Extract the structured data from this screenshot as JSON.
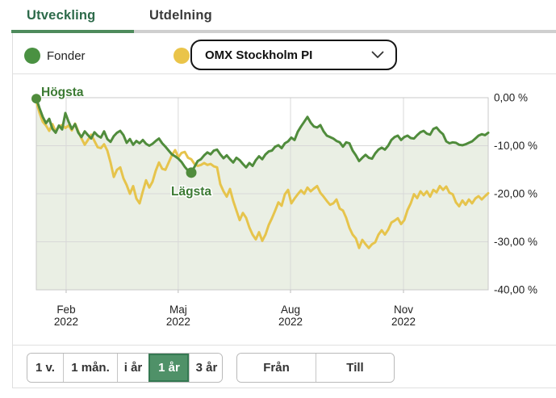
{
  "header": {
    "tabs": [
      {
        "label": "Utveckling",
        "active": true
      },
      {
        "label": "Utdelning",
        "active": false
      }
    ]
  },
  "legend": {
    "fund_label": "Fonder",
    "index_dropdown_value": "OMX Stockholm PI"
  },
  "chart_data": {
    "type": "line",
    "y_axis": {
      "unit": "%",
      "min": -40,
      "max": 0,
      "ticks": [
        {
          "label": "0,00 %",
          "value": 0
        },
        {
          "label": "-10,00 %",
          "value": -10
        },
        {
          "label": "-20,00 %",
          "value": -20
        },
        {
          "label": "-30,00 %",
          "value": -30
        },
        {
          "label": "-40,00 %",
          "value": -40
        }
      ]
    },
    "x_axis": {
      "ticks": [
        {
          "month": "Feb",
          "year": "2022",
          "t": 0.066
        },
        {
          "month": "Maj",
          "year": "2022",
          "t": 0.314
        },
        {
          "month": "Aug",
          "year": "2022",
          "t": 0.5625
        },
        {
          "month": "Nov",
          "year": "2022",
          "t": 0.8125
        }
      ]
    },
    "grid": true,
    "annotations": {
      "high": {
        "label": "Högsta",
        "series": "Fonder",
        "t": 0.0,
        "value": -0.2
      },
      "low": {
        "label": "Lägsta",
        "series": "Fonder",
        "t": 0.3429,
        "value": -15.6
      }
    },
    "series": [
      {
        "name": "Fonder",
        "color": "#508c3c",
        "area_fill": "#eaefe4",
        "values": [
          -0.2,
          -2.2,
          -4,
          -5.3,
          -4.4,
          -6.5,
          -7.3,
          -5.8,
          -6.6,
          -3.2,
          -5,
          -6.5,
          -5.5,
          -7.3,
          -8.2,
          -7,
          -7.8,
          -8.5,
          -7.2,
          -7.9,
          -8.3,
          -7,
          -8.6,
          -9.2,
          -8,
          -7.3,
          -6.9,
          -7.8,
          -9.4,
          -8.6,
          -9.8,
          -9,
          -9.5,
          -8.8,
          -9.6,
          -10,
          -9.6,
          -9,
          -8.5,
          -9.5,
          -10.2,
          -11,
          -11.8,
          -12.2,
          -12.7,
          -13.4,
          -14.4,
          -15.2,
          -15.6,
          -14.4,
          -13.2,
          -12.8,
          -12,
          -11.4,
          -11.8,
          -11,
          -10.8,
          -11.8,
          -12.6,
          -12,
          -12.8,
          -13.5,
          -12.5,
          -13,
          -13.8,
          -14.5,
          -13.6,
          -14.2,
          -13,
          -12.2,
          -12.8,
          -11.8,
          -11.2,
          -11,
          -10.2,
          -9.9,
          -10.5,
          -9.5,
          -9.1,
          -8.3,
          -8.8,
          -7.1,
          -6,
          -5,
          -4,
          -5.2,
          -6,
          -6.2,
          -5.7,
          -7,
          -7.9,
          -8.2,
          -8.5,
          -9,
          -9.3,
          -10.2,
          -9.3,
          -9.5,
          -11,
          -12,
          -13.2,
          -12.5,
          -11.9,
          -12.5,
          -12.7,
          -11.6,
          -10.8,
          -10.4,
          -10.8,
          -10,
          -8.8,
          -8.2,
          -7.9,
          -8.8,
          -8.2,
          -7.9,
          -8.4,
          -8.5,
          -7.8,
          -7.2,
          -6.9,
          -7.5,
          -7.7,
          -6.5,
          -6.2,
          -7,
          -7.6,
          -9.1,
          -9.5,
          -9.3,
          -9.4,
          -9.8,
          -9.9,
          -9.7,
          -9.4,
          -9.1,
          -8.5,
          -7.9,
          -7.6,
          -7.8,
          -7.3
        ]
      },
      {
        "name": "OMX Stockholm PI",
        "color": "#e6c44c",
        "values": [
          -0.8,
          -3.2,
          -5,
          -5.8,
          -6.9,
          -5.5,
          -7,
          -6,
          -5.7,
          -6.3,
          -5.8,
          -6.8,
          -5.4,
          -7,
          -8.5,
          -9.8,
          -8.8,
          -7.7,
          -9,
          -10.3,
          -10.5,
          -9.7,
          -11,
          -13.5,
          -16.5,
          -15,
          -14.5,
          -16.8,
          -18.2,
          -20,
          -18.4,
          -21,
          -22,
          -19.5,
          -17.2,
          -18.7,
          -17.5,
          -15.2,
          -13.5,
          -14.8,
          -15,
          -13.5,
          -12,
          -10.9,
          -12.4,
          -11.5,
          -11.3,
          -12.5,
          -12.8,
          -13.8,
          -14.2,
          -14,
          -13.6,
          -14,
          -13.8,
          -14.3,
          -14.5,
          -18,
          -19.5,
          -20.6,
          -19,
          -21.5,
          -23.5,
          -25.5,
          -24,
          -25,
          -27,
          -28.5,
          -29.5,
          -28,
          -29.8,
          -28.5,
          -26.5,
          -25.1,
          -23.5,
          -21.8,
          -22.5,
          -20.1,
          -19.2,
          -22,
          -21,
          -20.1,
          -19.3,
          -20,
          -18.7,
          -19.5,
          -18.9,
          -18.4,
          -19.8,
          -20.6,
          -21.5,
          -22.3,
          -22,
          -21.2,
          -23.1,
          -23.5,
          -25,
          -27.1,
          -28.5,
          -29.3,
          -31.3,
          -29.6,
          -30.5,
          -31.3,
          -30.5,
          -30.1,
          -28.5,
          -27.6,
          -28.5,
          -27.5,
          -26,
          -25.6,
          -25.1,
          -26.3,
          -25.5,
          -23.4,
          -22,
          -20.1,
          -20.9,
          -19.5,
          -20.3,
          -19.5,
          -20.6,
          -19.2,
          -19.7,
          -18.4,
          -19.2,
          -18.5,
          -19.8,
          -20.1,
          -21.8,
          -22.6,
          -21.4,
          -22.3,
          -21.2,
          -22,
          -21,
          -20.5,
          -21.2,
          -20.5,
          -19.9
        ]
      }
    ]
  },
  "period_buttons": {
    "options": [
      "1 v.",
      "1 mån.",
      "i år",
      "1 år",
      "3 år"
    ],
    "selected": "1 år"
  },
  "range_buttons": {
    "from": "Från",
    "to": "Till"
  },
  "colors": {
    "fund_green": "#508c3c",
    "index_yellow": "#e6c44c",
    "active_tab_green": "#2d6a4a",
    "selected_button_green": "#4f9168",
    "area_fill": "#eaefe4"
  }
}
